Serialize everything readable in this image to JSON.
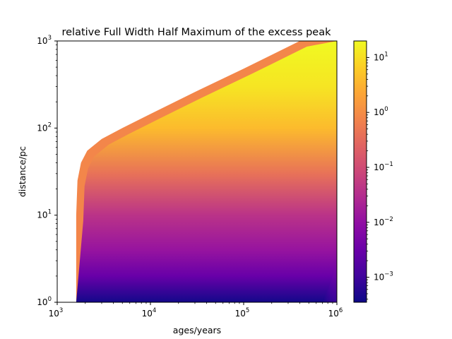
{
  "chart_data": {
    "type": "heatmap",
    "title": "relative Full Width Half Maximum of the excess peak",
    "xlabel": "ages/years",
    "ylabel": "distance/pc",
    "xscale": "log",
    "yscale": "log",
    "xlim": [
      1000,
      1000000
    ],
    "ylim": [
      1,
      1000
    ],
    "x_ticks": [
      {
        "value": 1000,
        "base": "10",
        "exp": "3"
      },
      {
        "value": 10000,
        "base": "10",
        "exp": "4"
      },
      {
        "value": 100000,
        "base": "10",
        "exp": "5"
      },
      {
        "value": 1000000,
        "base": "10",
        "exp": "6"
      }
    ],
    "y_ticks": [
      {
        "value": 1,
        "base": "10",
        "exp": "0"
      },
      {
        "value": 10,
        "base": "10",
        "exp": "1"
      },
      {
        "value": 100,
        "base": "10",
        "exp": "2"
      },
      {
        "value": 1000,
        "base": "10",
        "exp": "3"
      }
    ],
    "colormap": "plasma",
    "colorbar": {
      "scale": "log",
      "range": [
        0.00035,
        20
      ],
      "ticks": [
        {
          "value": 10,
          "base": "10",
          "exp": "1"
        },
        {
          "value": 1,
          "base": "10",
          "exp": "0"
        },
        {
          "value": 0.1,
          "base": "10",
          "exp": "−1"
        },
        {
          "value": 0.01,
          "base": "10",
          "exp": "−2"
        },
        {
          "value": 0.001,
          "base": "10",
          "exp": "−3"
        }
      ]
    },
    "data_region": {
      "min_age": 1600,
      "boundary": [
        {
          "age": 1600,
          "distance": 10
        },
        {
          "age": 1650,
          "distance": 25
        },
        {
          "age": 1800,
          "distance": 40
        },
        {
          "age": 2100,
          "distance": 55
        },
        {
          "age": 3000,
          "distance": 75
        },
        {
          "age": 5000,
          "distance": 100
        },
        {
          "age": 10000,
          "distance": 145
        },
        {
          "age": 30000,
          "distance": 260
        },
        {
          "age": 100000,
          "distance": 480
        },
        {
          "age": 400000,
          "distance": 1000
        }
      ]
    },
    "value_by_distance": [
      {
        "distance": 1,
        "value": 0.0004
      },
      {
        "distance": 2,
        "value": 0.003
      },
      {
        "distance": 4,
        "value": 0.012
      },
      {
        "distance": 10,
        "value": 0.04
      },
      {
        "distance": 30,
        "value": 0.4
      },
      {
        "distance": 100,
        "value": 4
      },
      {
        "distance": 300,
        "value": 12
      },
      {
        "distance": 1000,
        "value": 20
      }
    ],
    "upper_edge_value": 0.8,
    "grid": false
  }
}
